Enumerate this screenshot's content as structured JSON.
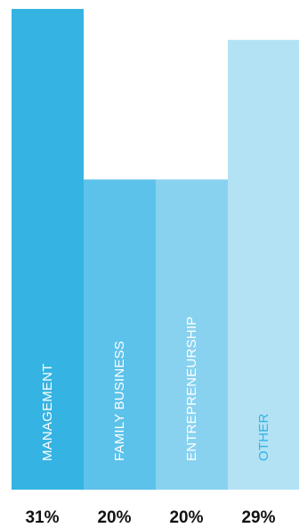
{
  "chart_data": {
    "type": "bar",
    "categories": [
      "MANAGEMENT",
      "FAMILY BUSINESS",
      "ENTREPRENEURSHIP",
      "OTHER"
    ],
    "values": [
      31,
      20,
      20,
      29
    ],
    "value_labels": [
      "31%",
      "20%",
      "20%",
      "29%"
    ],
    "colors": [
      "#35b3e3",
      "#5cc2ea",
      "#88d2f0",
      "#b3e2f5"
    ],
    "label_colors": [
      "#ffffff",
      "#ffffff",
      "#ffffff",
      "#35b3e3"
    ],
    "ylim": [
      0,
      31
    ],
    "grid": false,
    "legend": "none"
  }
}
